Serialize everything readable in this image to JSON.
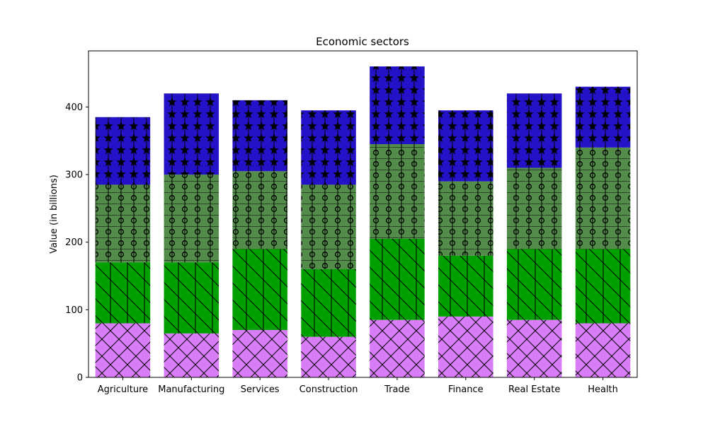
{
  "chart_data": {
    "type": "bar",
    "stacked": true,
    "title": "Economic sectors",
    "xlabel": "",
    "ylabel": "Value (in billions)",
    "ylim": [
      0,
      483
    ],
    "yticks": [
      0,
      100,
      200,
      300,
      400
    ],
    "grid": false,
    "categories": [
      "Agriculture",
      "Manufacturing",
      "Services",
      "Construction",
      "Trade",
      "Finance",
      "Real Estate",
      "Health"
    ],
    "series": [
      {
        "values": [
          80,
          65,
          70,
          60,
          85,
          90,
          85,
          80
        ],
        "color": "#d87cf8",
        "pattern": "crosshatch"
      },
      {
        "values": [
          90,
          105,
          120,
          100,
          120,
          90,
          105,
          110
        ],
        "color": "#00a000",
        "pattern": "back-diagonal-vertical"
      },
      {
        "values": [
          115,
          130,
          115,
          125,
          140,
          110,
          120,
          150
        ],
        "color": "#548c4c",
        "pattern": "circles-grid"
      },
      {
        "values": [
          100,
          120,
          105,
          110,
          115,
          105,
          110,
          90
        ],
        "color": "#2412c8",
        "pattern": "stars"
      }
    ]
  }
}
